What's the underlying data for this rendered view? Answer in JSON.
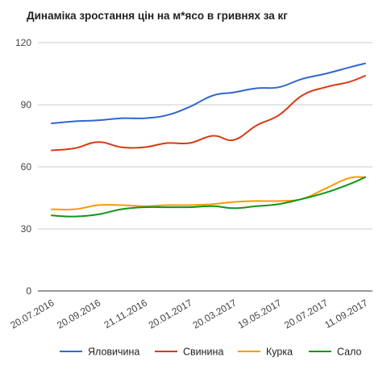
{
  "chart_data": {
    "type": "line",
    "title": "Динаміка зростання цін на м*ясо в гривнях за кг",
    "xlabel": "",
    "ylabel": "",
    "ylim": [
      0,
      120
    ],
    "yticks": [
      0,
      30,
      60,
      90,
      120
    ],
    "grid": true,
    "legend_position": "bottom",
    "x_tick_labels": [
      "20.07.2016",
      "20.09.2016",
      "21.11.2016",
      "20.01.2017",
      "20.03.2017",
      "19.05.2017",
      "20.07.2017",
      "11.09.2017"
    ],
    "x": [
      "20.07.2016",
      "20.08.2016",
      "20.09.2016",
      "21.10.2016",
      "21.11.2016",
      "21.12.2016",
      "20.01.2017",
      "20.02.2017",
      "20.03.2017",
      "19.04.2017",
      "19.05.2017",
      "19.06.2017",
      "20.07.2017",
      "20.08.2017",
      "11.09.2017"
    ],
    "series": [
      {
        "name": "Яловичина",
        "color": "#3366cc",
        "values": [
          81,
          82,
          82.5,
          83.5,
          83.5,
          85,
          89,
          94.5,
          96,
          98,
          98.5,
          102.5,
          105,
          108,
          110
        ]
      },
      {
        "name": "Свинина",
        "color": "#dc3912",
        "values": [
          68,
          69,
          72,
          69.5,
          69.5,
          71.5,
          71.5,
          75,
          73,
          80,
          85,
          94.5,
          98.5,
          101,
          104
        ]
      },
      {
        "name": "Курка",
        "color": "#ff9900",
        "values": [
          39.5,
          39.5,
          41.5,
          41.5,
          41,
          41.5,
          41.5,
          42,
          43,
          43.5,
          43.5,
          44.5,
          49.5,
          54.5,
          55
        ]
      },
      {
        "name": "Сало",
        "color": "#109618",
        "values": [
          36.5,
          36,
          37,
          39.5,
          40.5,
          40.5,
          40.5,
          41,
          40,
          41,
          42,
          44.5,
          47.5,
          51.5,
          55
        ]
      }
    ]
  }
}
